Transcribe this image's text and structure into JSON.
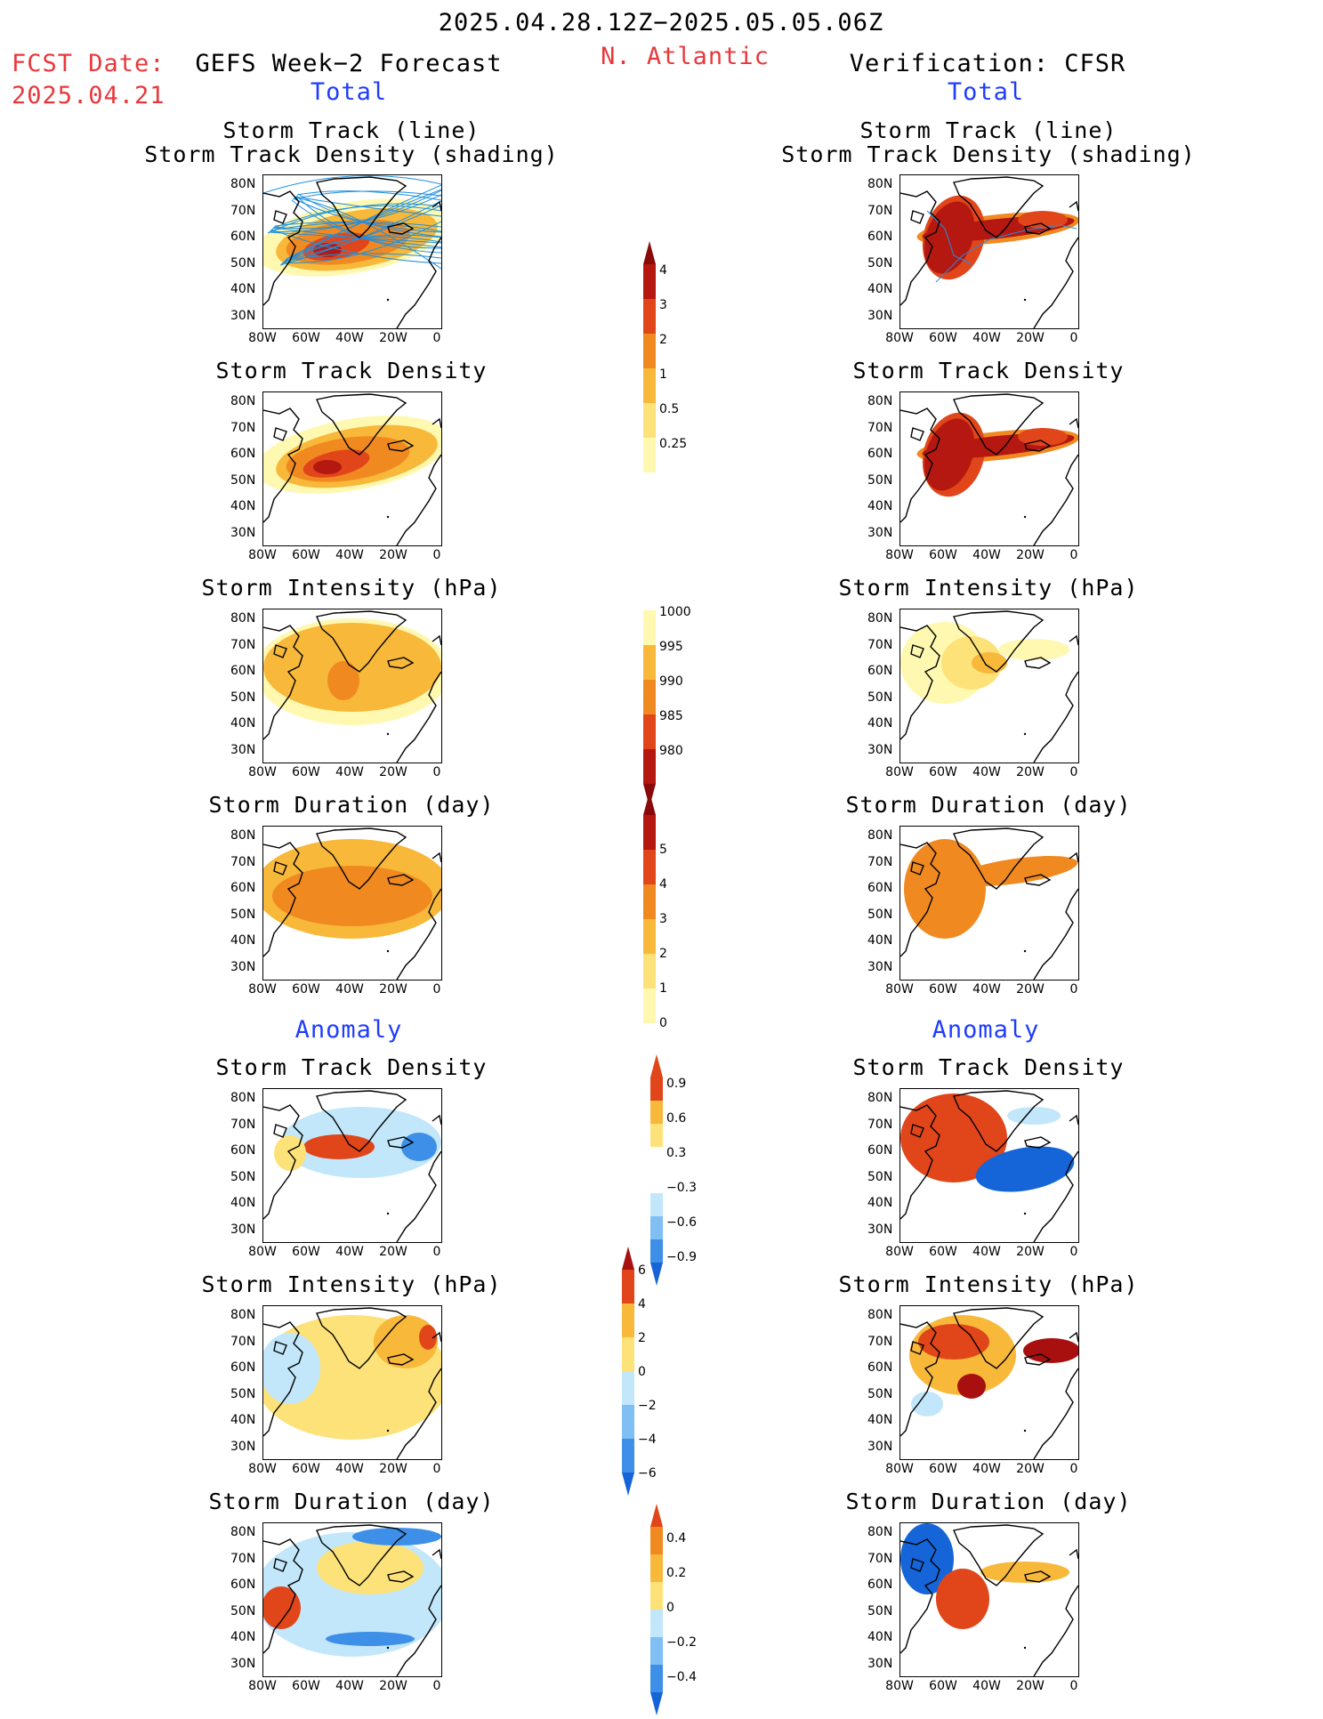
{
  "header": {
    "period": "2025.04.28.12Z−2025.05.05.06Z",
    "fcst_label": "FCST Date:",
    "fcst_date": "2025.04.21",
    "left_title": "GEFS Week−2 Forecast",
    "region": "N. Atlantic",
    "right_title": "Verification: CFSR"
  },
  "sections": {
    "total": "Total",
    "anomaly": "Anomaly"
  },
  "panel_titles": {
    "track_line_1": "Storm Track (line)",
    "track_line_2": "Storm Track Density (shading)",
    "density": "Storm Track Density",
    "intensity": "Storm Intensity (hPa)",
    "duration": "Storm Duration (day)"
  },
  "axes": {
    "lat_ticks": [
      "80N",
      "70N",
      "60N",
      "50N",
      "40N",
      "30N"
    ],
    "lon_ticks": [
      "80W",
      "60W",
      "40W",
      "20W",
      "0"
    ]
  },
  "colors": {
    "seq": [
      "#fff8b0",
      "#fde27a",
      "#f8b83a",
      "#f08a20",
      "#e0461a",
      "#b41810",
      "#8a0a0a"
    ],
    "div": [
      "#1565d8",
      "#3d8fe8",
      "#7fbff4",
      "#c2e6fa",
      "#ffffff",
      "#fde27a",
      "#f8b83a",
      "#f08a20",
      "#e0461a",
      "#a81010"
    ],
    "track_line": "#1e90e0",
    "coast": "#000000"
  },
  "colorbars": {
    "density_total": [
      "0.25",
      "0.5",
      "1",
      "2",
      "3",
      "4"
    ],
    "intensity_total": [
      "1000",
      "995",
      "990",
      "985",
      "980"
    ],
    "duration_total": [
      "0",
      "1",
      "2",
      "3",
      "4",
      "5"
    ],
    "density_anom": [
      "0.9",
      "0.6",
      "0.3",
      "−0.3",
      "−0.6",
      "−0.9"
    ],
    "intensity_anom": [
      "6",
      "4",
      "2",
      "0",
      "−2",
      "−4",
      "−6"
    ],
    "duration_anom": [
      "0.4",
      "0.2",
      "0",
      "−0.2",
      "−0.4"
    ]
  },
  "chart_data": [
    {
      "type": "heatmap",
      "id": "fc-track-line",
      "title": "Storm Track (line) / Storm Track Density (shading)",
      "source": "GEFS Week-2 Forecast"
    },
    {
      "type": "heatmap",
      "id": "fc-density",
      "title": "Storm Track Density",
      "source": "GEFS Week-2 Forecast",
      "levels": [
        0.25,
        0.5,
        1,
        2,
        3,
        4
      ]
    },
    {
      "type": "heatmap",
      "id": "fc-intensity",
      "title": "Storm Intensity (hPa)",
      "source": "GEFS Week-2 Forecast",
      "levels": [
        1000,
        995,
        990,
        985,
        980
      ]
    },
    {
      "type": "heatmap",
      "id": "fc-duration",
      "title": "Storm Duration (day)",
      "source": "GEFS Week-2 Forecast",
      "levels": [
        0,
        1,
        2,
        3,
        4,
        5
      ]
    },
    {
      "type": "heatmap",
      "id": "fc-density-anom",
      "title": "Storm Track Density",
      "source": "GEFS Week-2 Forecast",
      "levels": [
        -0.9,
        -0.6,
        -0.3,
        0.3,
        0.6,
        0.9
      ]
    },
    {
      "type": "heatmap",
      "id": "fc-intensity-anom",
      "title": "Storm Intensity (hPa)",
      "source": "GEFS Week-2 Forecast",
      "levels": [
        -6,
        -4,
        -2,
        0,
        2,
        4,
        6
      ]
    },
    {
      "type": "heatmap",
      "id": "fc-duration-anom",
      "title": "Storm Duration (day)",
      "source": "GEFS Week-2 Forecast",
      "levels": [
        -0.4,
        -0.2,
        0,
        0.2,
        0.4
      ]
    },
    {
      "type": "heatmap",
      "id": "vf-track-line",
      "title": "Storm Track (line) / Storm Track Density (shading)",
      "source": "Verification: CFSR"
    },
    {
      "type": "heatmap",
      "id": "vf-density",
      "title": "Storm Track Density",
      "source": "Verification: CFSR"
    },
    {
      "type": "heatmap",
      "id": "vf-intensity",
      "title": "Storm Intensity (hPa)",
      "source": "Verification: CFSR"
    },
    {
      "type": "heatmap",
      "id": "vf-duration",
      "title": "Storm Duration (day)",
      "source": "Verification: CFSR"
    },
    {
      "type": "heatmap",
      "id": "vf-density-anom",
      "title": "Storm Track Density",
      "source": "Verification: CFSR"
    },
    {
      "type": "heatmap",
      "id": "vf-intensity-anom",
      "title": "Storm Intensity (hPa)",
      "source": "Verification: CFSR"
    },
    {
      "type": "heatmap",
      "id": "vf-duration-anom",
      "title": "Storm Duration (day)",
      "source": "Verification: CFSR"
    }
  ]
}
